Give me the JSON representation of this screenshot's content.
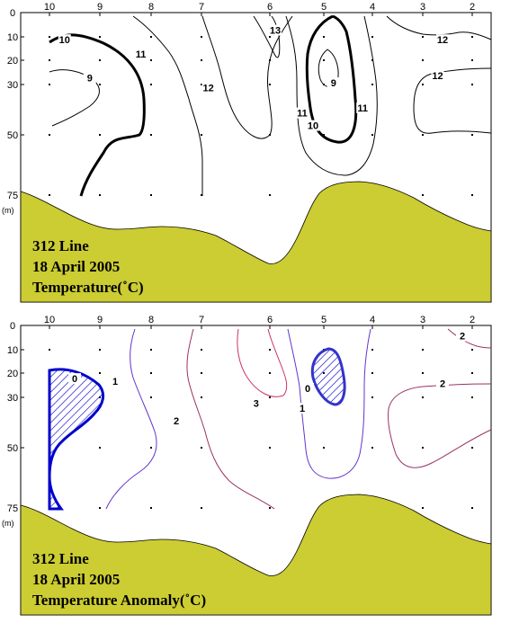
{
  "chart_data": [
    {
      "type": "contour",
      "caption": [
        "312 Line",
        "18 April 2005",
        "Temperature(˚C)"
      ],
      "x_ticks": [
        "10",
        "9",
        "8",
        "7",
        "6",
        "5",
        "4",
        "3",
        "2"
      ],
      "y_ticks": [
        "0",
        "10",
        "20",
        "30",
        "50",
        "75"
      ],
      "y_unit": "(m)",
      "contour_labels": [
        {
          "text": "10",
          "station": 9.7,
          "depth": 12
        },
        {
          "text": "9",
          "station": 9.2,
          "depth": 28
        },
        {
          "text": "11",
          "station": 8.2,
          "depth": 18
        },
        {
          "text": "12",
          "station": 6.9,
          "depth": 32
        },
        {
          "text": "13",
          "station": 5.9,
          "depth": 8
        },
        {
          "text": "9",
          "station": 4.8,
          "depth": 30
        },
        {
          "text": "11",
          "station": 5.4,
          "depth": 42
        },
        {
          "text": "10",
          "station": 5.2,
          "depth": 47
        },
        {
          "text": "11",
          "station": 4.2,
          "depth": 40
        },
        {
          "text": "12",
          "station": 2.6,
          "depth": 12
        },
        {
          "text": "12",
          "station": 2.7,
          "depth": 27
        }
      ],
      "colors": {
        "bathymetry": "#cccc33",
        "bold_contour": "#000000",
        "thin_contour": "#000000"
      }
    },
    {
      "type": "contour",
      "caption": [
        "312 Line",
        "18 April 2005",
        "Temperature Anomaly(˚C)"
      ],
      "x_ticks": [
        "10",
        "9",
        "8",
        "7",
        "6",
        "5",
        "4",
        "3",
        "2"
      ],
      "y_ticks": [
        "0",
        "10",
        "20",
        "30",
        "50",
        "75"
      ],
      "y_unit": "(m)",
      "contour_labels": [
        {
          "text": "0",
          "station": 9.5,
          "depth": 23
        },
        {
          "text": "1",
          "station": 8.7,
          "depth": 24
        },
        {
          "text": "2",
          "station": 7.5,
          "depth": 40
        },
        {
          "text": "3",
          "station": 6.2,
          "depth": 33
        },
        {
          "text": "0",
          "station": 5.3,
          "depth": 27
        },
        {
          "text": "1",
          "station": 5.4,
          "depth": 35
        },
        {
          "text": "2",
          "station": 2.2,
          "depth": 5
        },
        {
          "text": "2",
          "station": 2.6,
          "depth": 25
        }
      ],
      "colors": {
        "bathymetry": "#cccc33",
        "negative_hatch": "#0000cc",
        "zero_contour": "#3333cc",
        "positive_contour": "#993366"
      }
    }
  ]
}
